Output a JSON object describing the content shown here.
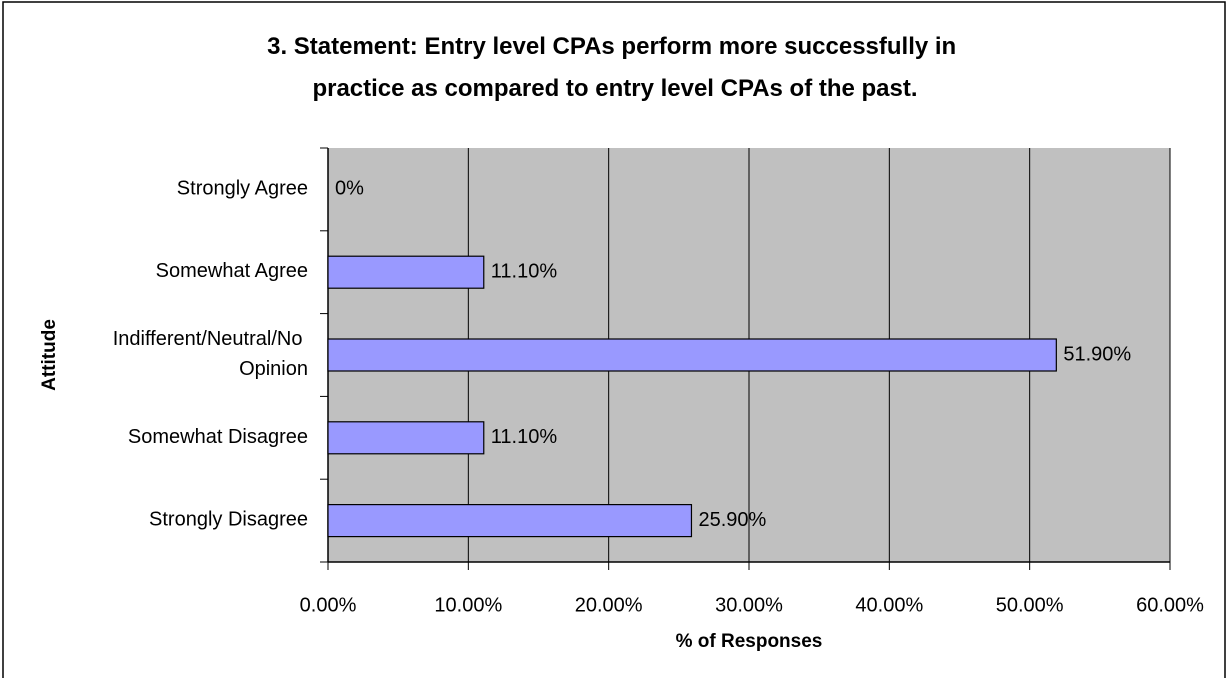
{
  "chart_data": {
    "type": "bar",
    "orientation": "horizontal",
    "title": "3. Statement: Entry level CPAs perform more successfully in practice as compared to entry level CPAs of the past.",
    "x_label": "% of Responses",
    "y_label": "Attitude",
    "categories": [
      "Strongly Agree",
      "Somewhat Agree",
      "Indifferent/Neutral/No Opinion",
      "Somewhat Disagree",
      "Strongly Disagree"
    ],
    "values": [
      0,
      11.1,
      51.9,
      11.1,
      25.9
    ],
    "value_labels": [
      "0%",
      "11.10%",
      "51.90%",
      "11.10%",
      "25.90%"
    ],
    "color": "#9999ff",
    "xlim": [
      0,
      60
    ],
    "xticks": [
      {
        "value": 0,
        "label": "0.00%"
      },
      {
        "value": 10,
        "label": "10.00%"
      },
      {
        "value": 20,
        "label": "20.00%"
      },
      {
        "value": 30,
        "label": "30.00%"
      },
      {
        "value": 40,
        "label": "40.00%"
      },
      {
        "value": 50,
        "label": "50.00%"
      },
      {
        "value": 60,
        "label": "60.00%"
      }
    ],
    "grid": true
  }
}
